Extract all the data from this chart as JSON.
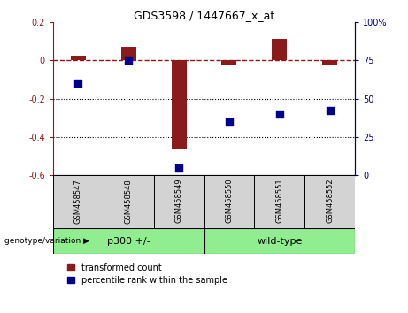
{
  "title": "GDS3598 / 1447667_x_at",
  "samples": [
    "GSM458547",
    "GSM458548",
    "GSM458549",
    "GSM458550",
    "GSM458551",
    "GSM458552"
  ],
  "red_bars": [
    0.022,
    0.072,
    -0.46,
    -0.028,
    0.11,
    -0.022
  ],
  "blue_pct": [
    60,
    75,
    5,
    35,
    40,
    42
  ],
  "ylim_left": [
    -0.6,
    0.2
  ],
  "ylim_right": [
    0,
    100
  ],
  "yticks_left": [
    -0.6,
    -0.4,
    -0.2,
    0.0,
    0.2
  ],
  "yticks_right": [
    0,
    25,
    50,
    75,
    100
  ],
  "ytick_labels_left": [
    "-0.6",
    "-0.4",
    "-0.2",
    "0",
    "0.2"
  ],
  "ytick_labels_right": [
    "0",
    "25",
    "50",
    "75",
    "100%"
  ],
  "hline_y": 0.0,
  "dotted_lines": [
    -0.2,
    -0.4
  ],
  "groups": [
    {
      "label": "p300 +/-",
      "indices": [
        0,
        1,
        2
      ]
    },
    {
      "label": "wild-type",
      "indices": [
        3,
        4,
        5
      ]
    }
  ],
  "group_label_prefix": "genotype/variation",
  "bar_color": "#8b1a1a",
  "dot_color": "#00008b",
  "bar_width": 0.3,
  "dot_size": 28,
  "bg_plot": "#ffffff",
  "bg_label_area": "#d3d3d3",
  "group_box_color": "#90ee90",
  "legend_red_label": "transformed count",
  "legend_blue_label": "percentile rank within the sample"
}
